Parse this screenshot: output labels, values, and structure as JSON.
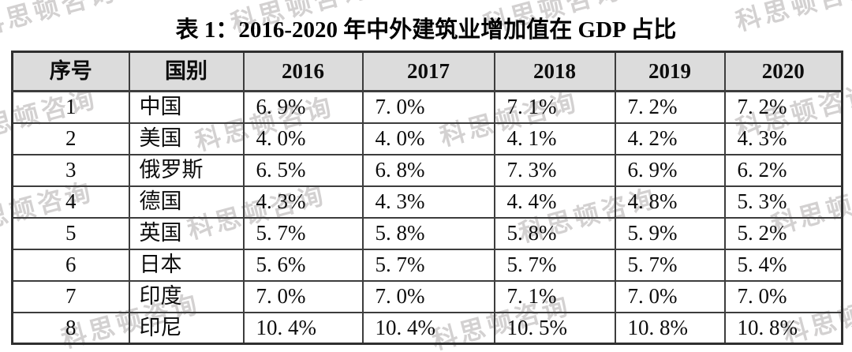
{
  "title": "表 1：2016-2020 年中外建筑业增加值在 GDP 占比",
  "watermark": {
    "text": "科思顿咨询"
  },
  "table": {
    "columns": [
      "序号",
      "国别",
      "2016",
      "2017",
      "2018",
      "2019",
      "2020"
    ],
    "rows": [
      {
        "no": "1",
        "country": "中国",
        "values": [
          "6.9%",
          "7.0%",
          "7.1%",
          "7.2%",
          "7.2%"
        ]
      },
      {
        "no": "2",
        "country": "美国",
        "values": [
          "4.0%",
          "4.0%",
          "4.1%",
          "4.2%",
          "4.3%"
        ]
      },
      {
        "no": "3",
        "country": "俄罗斯",
        "values": [
          "6.5%",
          "6.8%",
          "7.3%",
          "6.9%",
          "6.2%"
        ]
      },
      {
        "no": "4",
        "country": "德国",
        "values": [
          "4.3%",
          "4.3%",
          "4.4%",
          "4.8%",
          "5.3%"
        ]
      },
      {
        "no": "5",
        "country": "英国",
        "values": [
          "5.7%",
          "5.8%",
          "5.8%",
          "5.9%",
          "5.2%"
        ]
      },
      {
        "no": "6",
        "country": "日本",
        "values": [
          "5.6%",
          "5.7%",
          "5.7%",
          "5.7%",
          "5.4%"
        ]
      },
      {
        "no": "7",
        "country": "印度",
        "values": [
          "7.0%",
          "7.0%",
          "7.1%",
          "7.0%",
          "7.0%"
        ]
      },
      {
        "no": "8",
        "country": "印尼",
        "values": [
          "10.4%",
          "10.4%",
          "10.5%",
          "10.8%",
          "10.8%"
        ]
      }
    ]
  },
  "colors": {
    "header_bg": "#dcdcdc",
    "border": "#3d3d3d",
    "watermark": "#a8a3a3"
  },
  "chart_data": {
    "type": "table",
    "title": "表 1：2016-2020 年中外建筑业增加值在 GDP 占比",
    "columns": [
      "序号",
      "国别",
      "2016",
      "2017",
      "2018",
      "2019",
      "2020"
    ],
    "categories": [
      "2016",
      "2017",
      "2018",
      "2019",
      "2020"
    ],
    "unit": "%",
    "series": [
      {
        "name": "中国",
        "values": [
          6.9,
          7.0,
          7.1,
          7.2,
          7.2
        ]
      },
      {
        "name": "美国",
        "values": [
          4.0,
          4.0,
          4.1,
          4.2,
          4.3
        ]
      },
      {
        "name": "俄罗斯",
        "values": [
          6.5,
          6.8,
          7.3,
          6.9,
          6.2
        ]
      },
      {
        "name": "德国",
        "values": [
          4.3,
          4.3,
          4.4,
          4.8,
          5.3
        ]
      },
      {
        "name": "英国",
        "values": [
          5.7,
          5.8,
          5.8,
          5.9,
          5.2
        ]
      },
      {
        "name": "日本",
        "values": [
          5.6,
          5.7,
          5.7,
          5.7,
          5.4
        ]
      },
      {
        "name": "印度",
        "values": [
          7.0,
          7.0,
          7.1,
          7.0,
          7.0
        ]
      },
      {
        "name": "印尼",
        "values": [
          10.4,
          10.4,
          10.5,
          10.8,
          10.8
        ]
      }
    ]
  }
}
